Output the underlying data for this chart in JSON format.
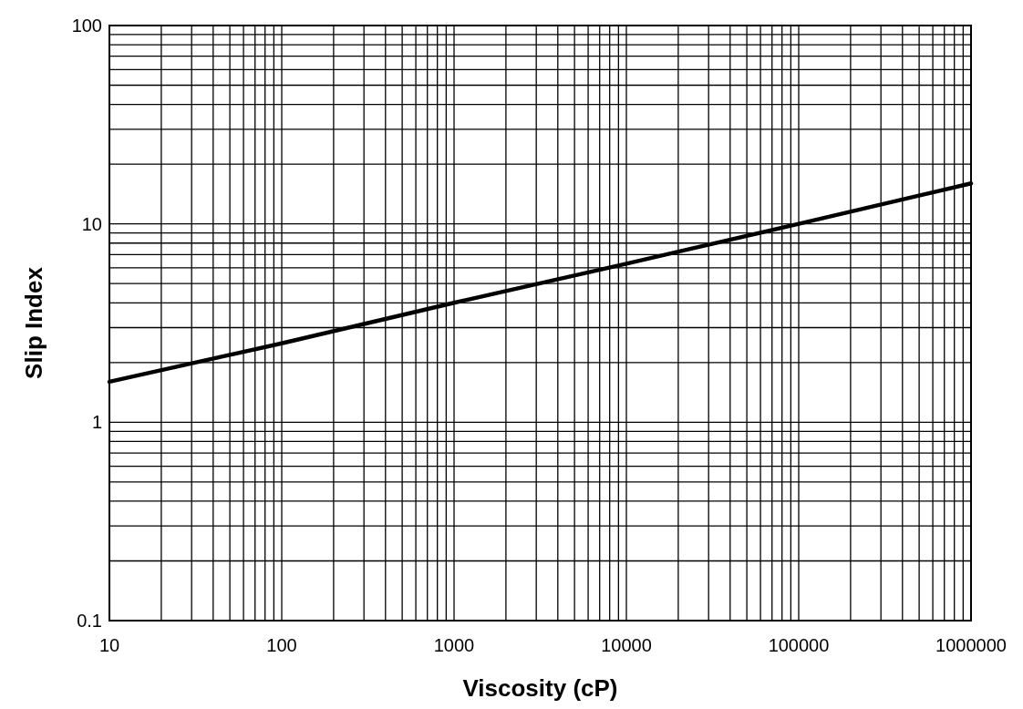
{
  "chart_data": {
    "type": "line",
    "xlabel": "Viscosity (cP)",
    "ylabel": "Slip Index",
    "log": "xy",
    "grid": true,
    "marker": "none",
    "line_style": "solid",
    "xlim": [
      10,
      1000000
    ],
    "ylim": [
      0.1,
      100
    ],
    "xticks": [
      10,
      {
        "value": 20,
        "label": null
      },
      {
        "value": 30,
        "label": null
      },
      {
        "value": 40,
        "label": null
      },
      {
        "value": 50,
        "label": null
      },
      {
        "value": 60,
        "label": null
      },
      {
        "value": 70,
        "label": null
      },
      {
        "value": 80,
        "label": null
      },
      {
        "value": 90,
        "label": null
      },
      100,
      {
        "value": 200,
        "label": null
      },
      {
        "value": 300,
        "label": null
      },
      {
        "value": 400,
        "label": null
      },
      {
        "value": 500,
        "label": null
      },
      {
        "value": 600,
        "label": null
      },
      {
        "value": 700,
        "label": null
      },
      {
        "value": 800,
        "label": null
      },
      {
        "value": 900,
        "label": null
      },
      1000,
      {
        "value": 2000,
        "label": null
      },
      {
        "value": 3000,
        "label": null
      },
      {
        "value": 4000,
        "label": null
      },
      {
        "value": 5000,
        "label": null
      },
      {
        "value": 6000,
        "label": null
      },
      {
        "value": 7000,
        "label": null
      },
      {
        "value": 8000,
        "label": null
      },
      {
        "value": 9000,
        "label": null
      },
      10000,
      {
        "value": 20000,
        "label": null
      },
      {
        "value": 30000,
        "label": null
      },
      {
        "value": 40000,
        "label": null
      },
      {
        "value": 50000,
        "label": null
      },
      {
        "value": 60000,
        "label": null
      },
      {
        "value": 70000,
        "label": null
      },
      {
        "value": 80000,
        "label": null
      },
      {
        "value": 90000,
        "label": null
      },
      100000,
      {
        "value": 200000,
        "label": null
      },
      {
        "value": 300000,
        "label": null
      },
      {
        "value": 400000,
        "label": null
      },
      {
        "value": 500000,
        "label": null
      },
      {
        "value": 600000,
        "label": null
      },
      {
        "value": 700000,
        "label": null
      },
      {
        "value": 800000,
        "label": null
      },
      {
        "value": 900000,
        "label": null
      },
      1000000
    ],
    "yticks": [
      0.1,
      {
        "value": 0.2,
        "label": null
      },
      {
        "value": 0.3,
        "label": null
      },
      {
        "value": 0.4,
        "label": null
      },
      {
        "value": 0.5,
        "label": null
      },
      {
        "value": 0.6,
        "label": null
      },
      {
        "value": 0.7,
        "label": null
      },
      {
        "value": 0.8,
        "label": null
      },
      {
        "value": 0.9,
        "label": null
      },
      1,
      {
        "value": 2,
        "label": null
      },
      {
        "value": 3,
        "label": null
      },
      {
        "value": 4,
        "label": null
      },
      {
        "value": 5,
        "label": null
      },
      {
        "value": 6,
        "label": null
      },
      {
        "value": 7,
        "label": null
      },
      {
        "value": 8,
        "label": null
      },
      {
        "value": 9,
        "label": null
      },
      10,
      {
        "value": 20,
        "label": null
      },
      {
        "value": 30,
        "label": null
      },
      {
        "value": 40,
        "label": null
      },
      {
        "value": 50,
        "label": null
      },
      {
        "value": 60,
        "label": null
      },
      {
        "value": 70,
        "label": null
      },
      {
        "value": 80,
        "label": null
      },
      {
        "value": 90,
        "label": null
      },
      100
    ],
    "x": [
      10,
      100,
      1000,
      10000,
      100000,
      1000000
    ],
    "series": [
      {
        "color": "#000000",
        "values": [
          1.6,
          2.5,
          4,
          6.3,
          10,
          16
        ]
      }
    ]
  }
}
